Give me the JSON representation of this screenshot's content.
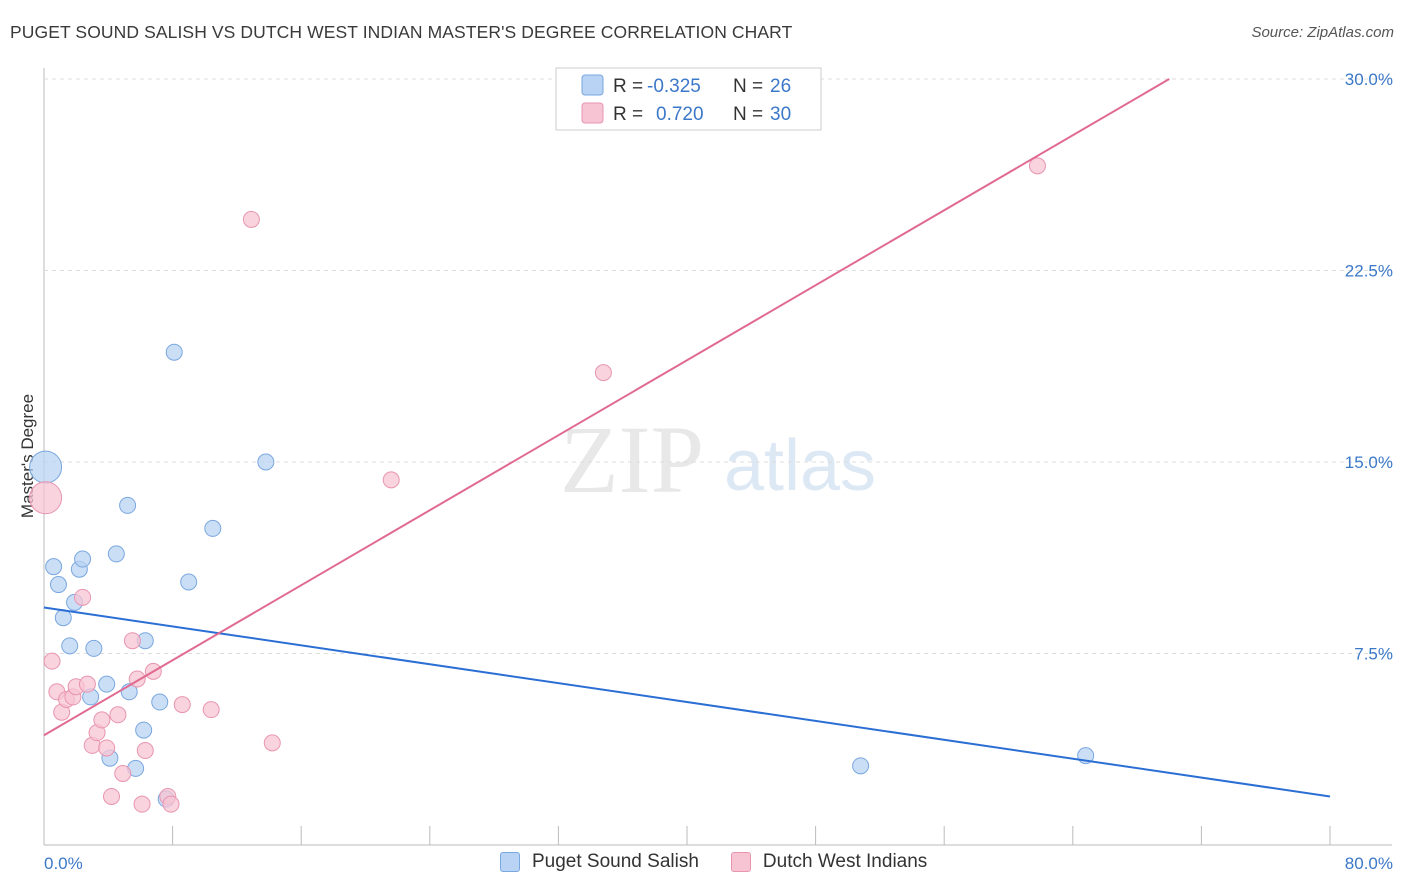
{
  "title": "PUGET SOUND SALISH VS DUTCH WEST INDIAN MASTER'S DEGREE CORRELATION CHART",
  "source": "Source: ZipAtlas.com",
  "watermark": {
    "zip": "ZIP",
    "atlas": "atlas"
  },
  "legend_top": [
    {
      "r_label": "R =",
      "r_value": "-0.325",
      "n_label": "N =",
      "n_value": "26"
    },
    {
      "r_label": "R =",
      "r_value": "0.720",
      "n_label": "N =",
      "n_value": "30"
    }
  ],
  "colors": {
    "blue_fill": "#b8d3f3",
    "blue_stroke": "#7aa7df",
    "blue_line": "#2b6fd4",
    "pink_fill": "#f7c4d3",
    "pink_stroke": "#e995b0",
    "pink_line": "#e06a92",
    "value_text": "#3b78c8",
    "grid": "#dddddd",
    "axis": "#bbbbbb"
  },
  "chart_data": {
    "type": "scatter",
    "title": "PUGET SOUND SALISH VS DUTCH WEST INDIAN MASTER'S DEGREE CORRELATION CHART",
    "xlabel": "",
    "ylabel": "Master's Degree",
    "xlim": [
      0,
      80
    ],
    "ylim": [
      0,
      30
    ],
    "x_tick_labels": [
      "0.0%",
      "80.0%"
    ],
    "y_ticks": [
      7.5,
      15.0,
      22.5,
      30.0
    ],
    "y_tick_labels": [
      "7.5%",
      "15.0%",
      "22.5%",
      "30.0%"
    ],
    "grid": true,
    "series": [
      {
        "name": "Puget Sound Salish",
        "color": "blue",
        "r": -0.325,
        "n": 26,
        "trend": {
          "x": [
            0,
            80
          ],
          "y": [
            9.3,
            1.9
          ]
        },
        "points": [
          {
            "x": 0.1,
            "y": 14.8,
            "big": true
          },
          {
            "x": 0.6,
            "y": 10.9
          },
          {
            "x": 0.9,
            "y": 10.2
          },
          {
            "x": 1.2,
            "y": 8.9
          },
          {
            "x": 1.6,
            "y": 7.8
          },
          {
            "x": 1.9,
            "y": 9.5
          },
          {
            "x": 2.2,
            "y": 10.8
          },
          {
            "x": 2.4,
            "y": 11.2
          },
          {
            "x": 2.9,
            "y": 5.8
          },
          {
            "x": 3.1,
            "y": 7.7
          },
          {
            "x": 3.9,
            "y": 6.3
          },
          {
            "x": 4.1,
            "y": 3.4
          },
          {
            "x": 4.5,
            "y": 11.4
          },
          {
            "x": 5.2,
            "y": 13.3
          },
          {
            "x": 5.3,
            "y": 6.0
          },
          {
            "x": 5.7,
            "y": 3.0
          },
          {
            "x": 6.2,
            "y": 4.5
          },
          {
            "x": 6.3,
            "y": 8.0
          },
          {
            "x": 7.2,
            "y": 5.6
          },
          {
            "x": 7.6,
            "y": 1.8
          },
          {
            "x": 8.1,
            "y": 19.3
          },
          {
            "x": 9.0,
            "y": 10.3
          },
          {
            "x": 10.5,
            "y": 12.4
          },
          {
            "x": 13.8,
            "y": 15.0
          },
          {
            "x": 50.8,
            "y": 3.1
          },
          {
            "x": 64.8,
            "y": 3.5
          }
        ]
      },
      {
        "name": "Dutch West Indians",
        "color": "pink",
        "r": 0.72,
        "n": 30,
        "trend": {
          "x": [
            0,
            70
          ],
          "y": [
            4.3,
            30.0
          ]
        },
        "points": [
          {
            "x": 0.1,
            "y": 13.6,
            "big": true
          },
          {
            "x": 0.5,
            "y": 7.2
          },
          {
            "x": 0.8,
            "y": 6.0
          },
          {
            "x": 1.1,
            "y": 5.2
          },
          {
            "x": 1.4,
            "y": 5.7
          },
          {
            "x": 1.8,
            "y": 5.8
          },
          {
            "x": 2.0,
            "y": 6.2
          },
          {
            "x": 2.4,
            "y": 9.7
          },
          {
            "x": 2.7,
            "y": 6.3
          },
          {
            "x": 3.0,
            "y": 3.9
          },
          {
            "x": 3.3,
            "y": 4.4
          },
          {
            "x": 3.6,
            "y": 4.9
          },
          {
            "x": 3.9,
            "y": 3.8
          },
          {
            "x": 4.2,
            "y": 1.9
          },
          {
            "x": 4.6,
            "y": 5.1
          },
          {
            "x": 4.9,
            "y": 2.8
          },
          {
            "x": 5.5,
            "y": 8.0
          },
          {
            "x": 5.8,
            "y": 6.5
          },
          {
            "x": 6.1,
            "y": 1.6
          },
          {
            "x": 6.3,
            "y": 3.7
          },
          {
            "x": 6.8,
            "y": 6.8
          },
          {
            "x": 7.7,
            "y": 1.9
          },
          {
            "x": 7.9,
            "y": 1.6
          },
          {
            "x": 8.6,
            "y": 5.5
          },
          {
            "x": 10.4,
            "y": 5.3
          },
          {
            "x": 12.9,
            "y": 24.5
          },
          {
            "x": 14.2,
            "y": 4.0
          },
          {
            "x": 21.6,
            "y": 14.3
          },
          {
            "x": 34.8,
            "y": 18.5
          },
          {
            "x": 61.8,
            "y": 26.6
          }
        ]
      }
    ]
  }
}
